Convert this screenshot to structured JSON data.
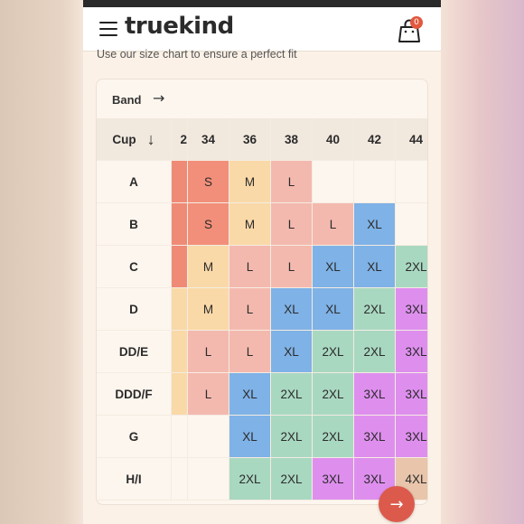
{
  "header": {
    "logo": "truekind",
    "cart_count": "0"
  },
  "subtitle": "Use our size chart to ensure a perfect fit",
  "table": {
    "band_label": "Band",
    "band_arrow": "→",
    "cup_label": "Cup",
    "cup_sort_icon": "↓",
    "partial_band_label": "2",
    "bands": [
      "34",
      "36",
      "38",
      "40",
      "42",
      "44"
    ],
    "cups": [
      "A",
      "B",
      "C",
      "D",
      "DD/E",
      "DDD/F",
      "G",
      "H/I"
    ],
    "rows": [
      [
        "S",
        "M",
        "L",
        "",
        "",
        ""
      ],
      [
        "S",
        "M",
        "L",
        "L",
        "XL",
        ""
      ],
      [
        "M",
        "L",
        "L",
        "XL",
        "XL",
        "2XL"
      ],
      [
        "M",
        "L",
        "XL",
        "XL",
        "2XL",
        "3XL"
      ],
      [
        "L",
        "L",
        "XL",
        "2XL",
        "2XL",
        "3XL"
      ],
      [
        "L",
        "XL",
        "2XL",
        "2XL",
        "3XL",
        "3XL"
      ],
      [
        "",
        "XL",
        "2XL",
        "2XL",
        "3XL",
        "3XL"
      ],
      [
        "",
        "2XL",
        "2XL",
        "3XL",
        "3XL",
        "4XL"
      ]
    ],
    "partial_column_colors": [
      "#ef8a76",
      "#ef8a76",
      "#ef8a76",
      "#fad9a8",
      "#fad9a8",
      "#fad9a8",
      "",
      ""
    ]
  },
  "size_colors": {
    "S": "#f28f7a",
    "M": "#fad9a8",
    "L": "#f4b9ae",
    "XL": "#7fb2e6",
    "2XL": "#a9d8c1",
    "3XL": "#de8fee",
    "4XL": "#e8c5ab"
  },
  "next_button_icon": "→"
}
